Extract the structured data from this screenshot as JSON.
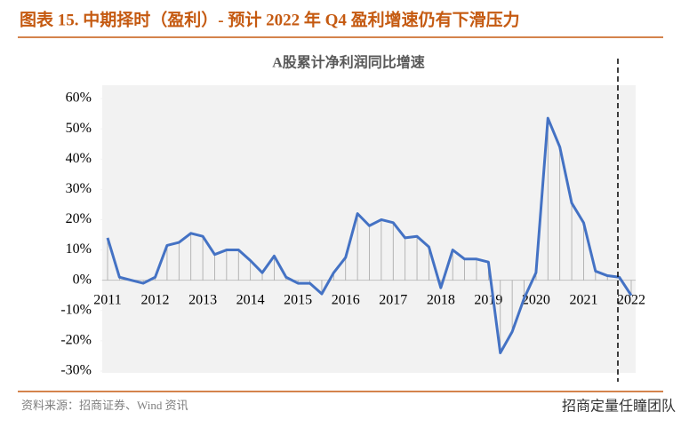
{
  "header": "图表 15. 中期择时（盈利）- 预计 2022 年 Q4 盈利增速仍有下滑压力",
  "source": "资料来源：招商证券、Wind 资讯",
  "watermark": "招商定量任瞳团队",
  "chart_data": {
    "type": "line",
    "title": "A股累计净利润同比增速",
    "categories": [
      "2011",
      null,
      null,
      null,
      "2012",
      null,
      null,
      null,
      "2013",
      null,
      null,
      null,
      "2014",
      null,
      null,
      null,
      "2015",
      null,
      null,
      null,
      "2016",
      null,
      null,
      null,
      "2017",
      null,
      null,
      null,
      "2018",
      null,
      null,
      null,
      "2019",
      null,
      null,
      null,
      "2020",
      null,
      null,
      null,
      "2021",
      null,
      null,
      null,
      "2022"
    ],
    "series": [
      {
        "color": "#4472c4",
        "values": [
          14,
          1,
          0,
          -1,
          1,
          11.5,
          12.5,
          15.5,
          14.5,
          8.5,
          10,
          10,
          6.5,
          2.5,
          8,
          1,
          -1,
          -1,
          -4.5,
          2.5,
          7.5,
          22,
          18,
          20,
          19,
          14,
          14.5,
          11,
          -2.5,
          10,
          7,
          7,
          6,
          -24,
          -17,
          -6,
          2.5,
          53.5,
          44,
          25.5,
          19,
          3,
          1.5,
          1,
          -5
        ]
      }
    ],
    "ylim": [
      -30,
      60
    ],
    "yticks": [
      {
        "value": -30,
        "label": "-30%"
      },
      {
        "value": -20,
        "label": "-20%"
      },
      {
        "value": -10,
        "label": "-10%"
      },
      {
        "value": 0,
        "label": "0%"
      },
      {
        "value": 10,
        "label": "10%"
      },
      {
        "value": 20,
        "label": "20%"
      },
      {
        "value": 30,
        "label": "30%"
      },
      {
        "value": 40,
        "label": "40%"
      },
      {
        "value": 50,
        "label": "50%"
      },
      {
        "value": 60,
        "label": "60%"
      }
    ],
    "drop_lines": true
  }
}
